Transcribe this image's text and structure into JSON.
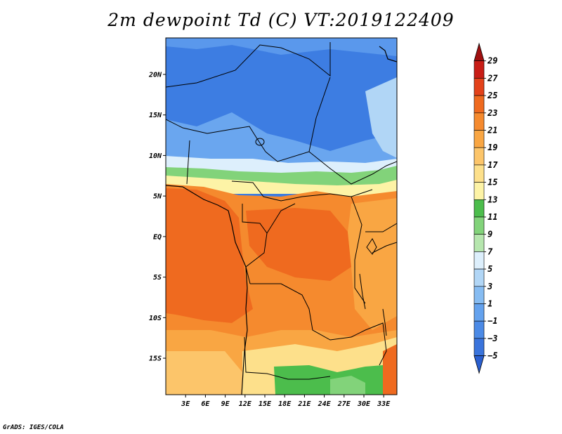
{
  "map": {
    "title": "2m dewpoint Td (C) VT:2019122409",
    "credit": "GrADS: IGES/COLA",
    "lat_ticks": [
      "20N",
      "15N",
      "10N",
      "5N",
      "EQ",
      "5S",
      "10S",
      "15S"
    ],
    "lon_ticks": [
      "3E",
      "6E",
      "9E",
      "12E",
      "15E",
      "18E",
      "21E",
      "24E",
      "27E",
      "30E",
      "33E"
    ],
    "lat_range": [
      -19.5,
      24.5
    ],
    "lon_range": [
      0,
      35
    ]
  },
  "colorbar": {
    "labels": [
      "-5",
      "-3",
      "-1",
      "1",
      "3",
      "5",
      "7",
      "9",
      "11",
      "13",
      "15",
      "17",
      "19",
      "21",
      "23",
      "25",
      "27",
      "29"
    ],
    "colors": [
      "#2a5fd0",
      "#3a74dc",
      "#4b8ae6",
      "#64a2ee",
      "#86bcf2",
      "#b1d6f6",
      "#ddeffc",
      "#b6e6ae",
      "#82d37a",
      "#4cbd4c",
      "#fdf3a6",
      "#fde08b",
      "#fcc56a",
      "#f9a643",
      "#f58a2e",
      "#ef6a1f",
      "#e3421a",
      "#c81d16",
      "#a01010"
    ]
  }
}
